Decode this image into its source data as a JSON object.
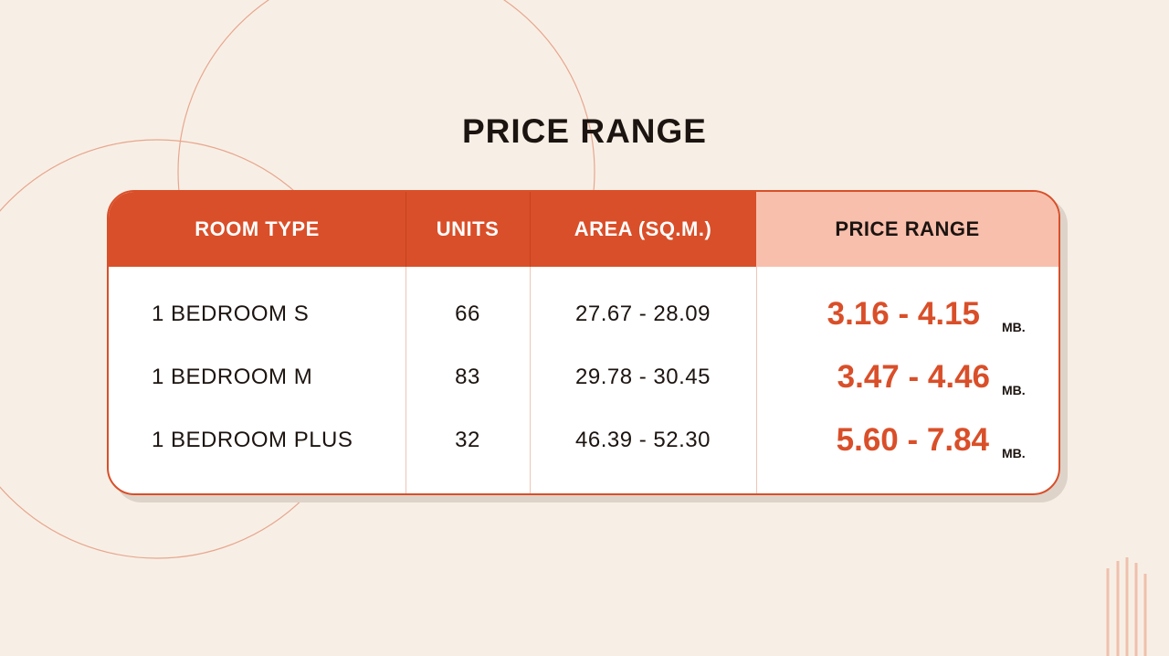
{
  "title": "PRICE RANGE",
  "table": {
    "headers": [
      "ROOM TYPE",
      "UNITS",
      "AREA (SQ.M.)",
      "PRICE RANGE"
    ],
    "rows": [
      {
        "room_type": "1 BEDROOM S",
        "units": "66",
        "area": "27.67 - 28.09",
        "price": "3.16 - 4.15",
        "unit": "MB."
      },
      {
        "room_type": "1 BEDROOM M",
        "units": "83",
        "area": "29.78 - 30.45",
        "price": "3.47 - 4.46",
        "unit": "MB."
      },
      {
        "room_type": "1 BEDROOM PLUS",
        "units": "32",
        "area": "46.39 - 52.30",
        "price": "5.60 - 7.84",
        "unit": "MB."
      }
    ]
  },
  "colors": {
    "background": "#f7efe5",
    "accent": "#d94f29",
    "highlight_header": "#f8bfad",
    "text": "#1c1410"
  }
}
